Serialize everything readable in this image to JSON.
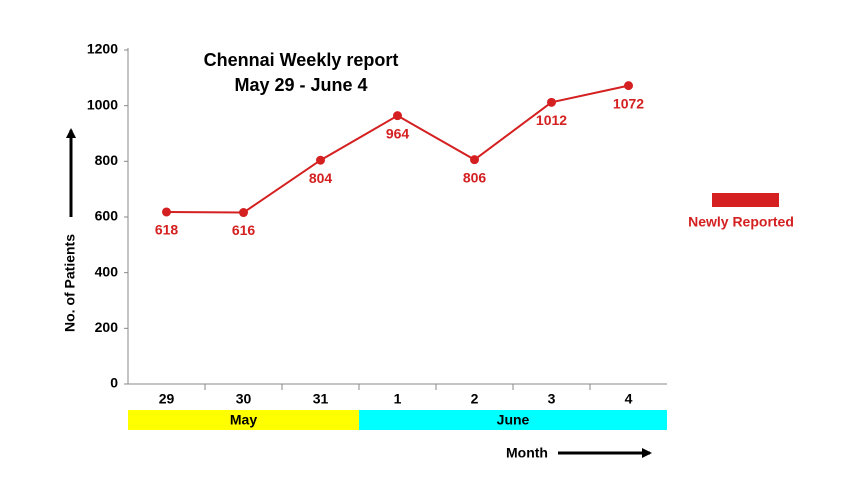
{
  "chart_data": {
    "type": "line",
    "title": [
      "Chennai Weekly report",
      "May 29 - June 4"
    ],
    "y_label": "No. of Patients",
    "x_label": "Month",
    "categories": [
      "29",
      "30",
      "31",
      "1",
      "2",
      "3",
      "4"
    ],
    "x_groups": [
      {
        "label": "May",
        "color": "#ffff00",
        "span": 3
      },
      {
        "label": "June",
        "color": "#00ffff",
        "span": 4
      }
    ],
    "series": [
      {
        "name": "Newly Reported",
        "color": "#d42020",
        "values": [
          618,
          616,
          804,
          964,
          806,
          1012,
          1072
        ]
      }
    ],
    "ylim": [
      0,
      1200
    ],
    "yticks": [
      0,
      200,
      400,
      600,
      800,
      1000,
      1200
    ],
    "legend": "right"
  }
}
